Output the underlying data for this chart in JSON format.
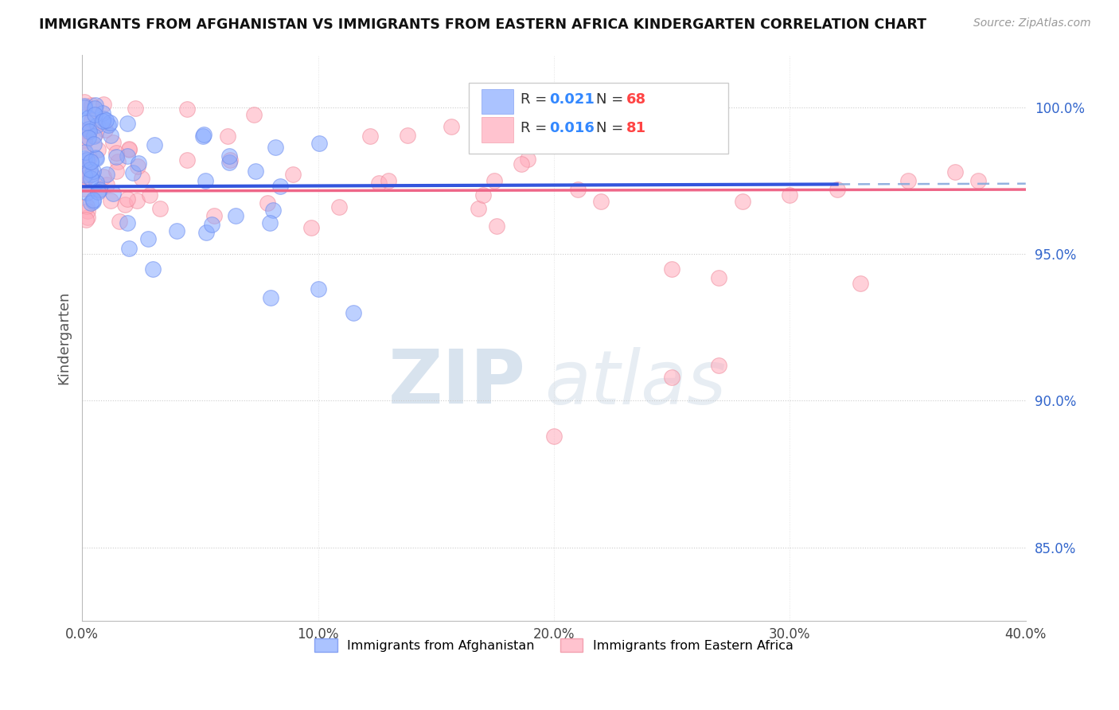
{
  "title": "IMMIGRANTS FROM AFGHANISTAN VS IMMIGRANTS FROM EASTERN AFRICA KINDERGARTEN CORRELATION CHART",
  "source": "Source: ZipAtlas.com",
  "ylabel": "Kindergarten",
  "xlim": [
    0.0,
    0.4
  ],
  "ylim": [
    0.825,
    1.018
  ],
  "yticks": [
    0.85,
    0.9,
    0.95,
    1.0
  ],
  "xticks": [
    0.0,
    0.1,
    0.2,
    0.3,
    0.4
  ],
  "afghanistan_color": "#88aaff",
  "afghanistan_edge": "#6688ee",
  "eastern_africa_color": "#ffaabb",
  "eastern_africa_edge": "#ee8899",
  "trend_blue_solid": "#3355dd",
  "trend_blue_dash": "#88aadd",
  "trend_pink_solid": "#ee6688",
  "afghanistan_R": 0.021,
  "afghanistan_N": 68,
  "eastern_africa_R": 0.016,
  "eastern_africa_N": 81,
  "legend_entries": [
    "Immigrants from Afghanistan",
    "Immigrants from Eastern Africa"
  ],
  "watermark_zip": "ZIP",
  "watermark_atlas": "atlas",
  "legend_R_color": "#3388ff",
  "legend_N_color": "#ff4444"
}
